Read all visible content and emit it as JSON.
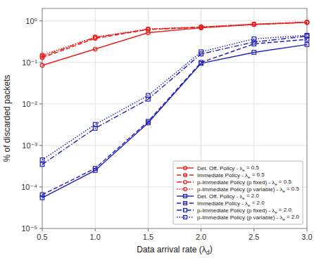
{
  "chart_data": {
    "type": "line",
    "x": [
      0.5,
      1.0,
      1.5,
      2.0,
      2.5,
      3.0
    ],
    "series": [
      {
        "name": "Det. Off. Policy - λe = 0.5",
        "color": "#e8211d",
        "marker": "circle",
        "line_style": "solid",
        "values": [
          0.085,
          0.21,
          0.52,
          0.68,
          0.82,
          0.92
        ]
      },
      {
        "name": "Immediate Policy - λe = 0.5",
        "color": "#e8211d",
        "marker": "circle",
        "line_style": "dashed",
        "values": [
          0.13,
          0.38,
          0.62,
          0.7,
          0.82,
          0.92
        ]
      },
      {
        "name": "p-Immediate Policy (p fixed) - λe = 0.5",
        "color": "#e8211d",
        "marker": "circle",
        "line_style": "dashdot",
        "values": [
          0.14,
          0.4,
          0.63,
          0.71,
          0.83,
          0.93
        ]
      },
      {
        "name": "p-Immediate Policy (p variable) - λe = 0.5",
        "color": "#e8211d",
        "marker": "circle",
        "line_style": "dotted",
        "values": [
          0.15,
          0.41,
          0.64,
          0.72,
          0.84,
          0.94
        ]
      },
      {
        "name": "Det. Off. Policy - λe = 2.0",
        "color": "#1f1fbf",
        "marker": "square",
        "line_style": "solid",
        "values": [
          5.5e-05,
          0.00025,
          0.0035,
          0.095,
          0.175,
          0.27
        ]
      },
      {
        "name": "Immediate Policy - λe = 2.0",
        "color": "#1f1fbf",
        "marker": "square",
        "line_style": "dashed",
        "values": [
          6.5e-05,
          0.00028,
          0.0038,
          0.1,
          0.28,
          0.36
        ]
      },
      {
        "name": "p-Immediate Policy (p fixed) - λe = 2.0",
        "color": "#1f1fbf",
        "marker": "square",
        "line_style": "dashdot",
        "values": [
          0.00035,
          0.0026,
          0.013,
          0.16,
          0.31,
          0.43
        ]
      },
      {
        "name": "p-Immediate Policy (p variable) - λe = 2.0",
        "color": "#1f1fbf",
        "marker": "square",
        "line_style": "dotted",
        "values": [
          0.00045,
          0.0032,
          0.016,
          0.18,
          0.37,
          0.45
        ]
      }
    ],
    "xlabel": "Data arrival rate (λd)",
    "ylabel": "% of discarded packets",
    "log": "y",
    "xlim": [
      0.5,
      3.0
    ],
    "ylim": [
      1e-05,
      2.0
    ],
    "xticks": [
      0.5,
      {
        "value": 1.0,
        "label": "1.0"
      },
      1.5,
      {
        "value": 2.0,
        "label": "2.0"
      },
      2.5,
      {
        "value": 3.0,
        "label": "3.0"
      }
    ],
    "yticks": [
      {
        "value": 1e-05,
        "label": "10⁻⁵"
      },
      {
        "value": 0.0001,
        "label": "10⁻⁴"
      },
      {
        "value": 0.001,
        "label": "10⁻³"
      },
      {
        "value": 0.01,
        "label": "10⁻²"
      },
      {
        "value": 0.1,
        "label": "10⁻¹"
      },
      {
        "value": 1,
        "label": "10⁰"
      }
    ],
    "grid": true,
    "legend": "lower right"
  }
}
